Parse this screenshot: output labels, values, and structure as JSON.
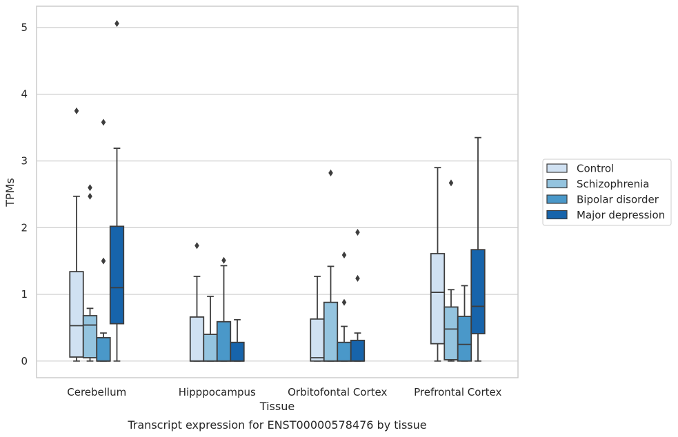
{
  "caption": "Transcript expression for ENST00000578476 by tissue",
  "chart_data": {
    "type": "boxplot",
    "xlabel": "Tissue",
    "ylabel": "TPMs",
    "ylim": [
      -0.25,
      5.32
    ],
    "yticks": [
      0,
      1,
      2,
      3,
      4,
      5
    ],
    "grid": "horizontal",
    "legend_position": "right-center",
    "categories": [
      "Cerebellum",
      "Hipppocampus",
      "Orbitofontal Cortex",
      "Prefrontal Cortex"
    ],
    "series": [
      {
        "name": "Control",
        "color": "#d0e1f2",
        "boxes": [
          {
            "whislo": 0.0,
            "q1": 0.06,
            "med": 0.53,
            "q3": 1.34,
            "whishi": 2.47,
            "fliers": [
              3.75
            ]
          },
          {
            "whislo": 0.0,
            "q1": 0.0,
            "med": 0.0,
            "q3": 0.66,
            "whishi": 1.27,
            "fliers": [
              1.73
            ]
          },
          {
            "whislo": 0.0,
            "q1": 0.0,
            "med": 0.05,
            "q3": 0.63,
            "whishi": 1.27,
            "fliers": []
          },
          {
            "whislo": 0.0,
            "q1": 0.26,
            "med": 1.03,
            "q3": 1.61,
            "whishi": 2.9,
            "fliers": []
          }
        ]
      },
      {
        "name": "Schizophrenia",
        "color": "#94c4df",
        "boxes": [
          {
            "whislo": 0.0,
            "q1": 0.05,
            "med": 0.54,
            "q3": 0.68,
            "whishi": 0.79,
            "fliers": [
              2.6,
              2.47
            ]
          },
          {
            "whislo": 0.0,
            "q1": 0.0,
            "med": 0.0,
            "q3": 0.4,
            "whishi": 0.97,
            "fliers": []
          },
          {
            "whislo": 0.0,
            "q1": 0.0,
            "med": 0.0,
            "q3": 0.88,
            "whishi": 1.42,
            "fliers": [
              2.82
            ]
          },
          {
            "whislo": 0.0,
            "q1": 0.02,
            "med": 0.48,
            "q3": 0.81,
            "whishi": 1.07,
            "fliers": [
              2.67
            ]
          }
        ]
      },
      {
        "name": "Bipolar disorder",
        "color": "#4a98c9",
        "boxes": [
          {
            "whislo": 0.0,
            "q1": 0.0,
            "med": 0.0,
            "q3": 0.35,
            "whishi": 0.42,
            "fliers": [
              3.58,
              1.5
            ]
          },
          {
            "whislo": 0.0,
            "q1": 0.0,
            "med": 0.0,
            "q3": 0.59,
            "whishi": 1.43,
            "fliers": [
              1.51
            ]
          },
          {
            "whislo": 0.0,
            "q1": 0.0,
            "med": 0.0,
            "q3": 0.28,
            "whishi": 0.52,
            "fliers": [
              1.59,
              0.88
            ]
          },
          {
            "whislo": 0.0,
            "q1": 0.0,
            "med": 0.25,
            "q3": 0.67,
            "whishi": 1.13,
            "fliers": []
          }
        ]
      },
      {
        "name": "Major depression",
        "color": "#1764ab",
        "boxes": [
          {
            "whislo": 0.0,
            "q1": 0.56,
            "med": 1.1,
            "q3": 2.02,
            "whishi": 3.19,
            "fliers": [
              5.06
            ]
          },
          {
            "whislo": 0.0,
            "q1": 0.0,
            "med": 0.0,
            "q3": 0.28,
            "whishi": 0.62,
            "fliers": []
          },
          {
            "whislo": 0.0,
            "q1": 0.0,
            "med": 0.0,
            "q3": 0.31,
            "whishi": 0.42,
            "fliers": [
              1.93,
              1.24
            ]
          },
          {
            "whislo": 0.0,
            "q1": 0.41,
            "med": 0.82,
            "q3": 1.67,
            "whishi": 3.35,
            "fliers": []
          }
        ]
      }
    ]
  }
}
